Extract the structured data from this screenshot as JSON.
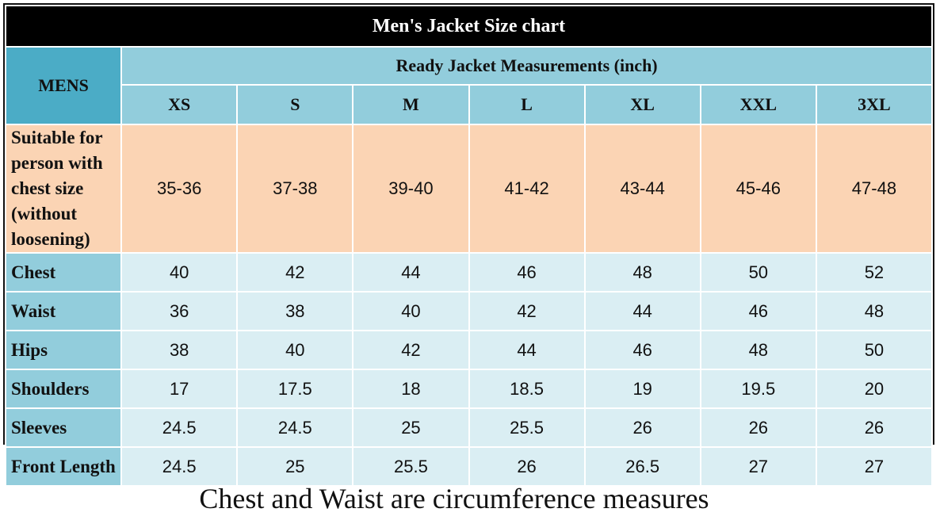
{
  "header": {
    "title": "Men's Jacket Size chart"
  },
  "table": {
    "corner": "MENS",
    "group": "Ready Jacket Measurements (inch)",
    "sizes": [
      "XS",
      "S",
      "M",
      "L",
      "XL",
      "XXL",
      "3XL"
    ],
    "rows": [
      {
        "label": "Suitable for person with chest size (without loosening)",
        "values": [
          "35-36",
          "37-38",
          "39-40",
          "41-42",
          "43-44",
          "45-46",
          "47-48"
        ]
      },
      {
        "label": "Chest",
        "values": [
          "40",
          "42",
          "44",
          "46",
          "48",
          "50",
          "52"
        ]
      },
      {
        "label": "Waist",
        "values": [
          "36",
          "38",
          "40",
          "42",
          "44",
          "46",
          "48"
        ]
      },
      {
        "label": "Hips",
        "values": [
          "38",
          "40",
          "42",
          "44",
          "46",
          "48",
          "50"
        ]
      },
      {
        "label": "Shoulders",
        "values": [
          "17",
          "17.5",
          "18",
          "18.5",
          "19",
          "19.5",
          "20"
        ]
      },
      {
        "label": "Sleeves",
        "values": [
          "24.5",
          "24.5",
          "25",
          "25.5",
          "26",
          "26",
          "26"
        ]
      },
      {
        "label": "Front Length",
        "values": [
          "24.5",
          "25",
          "25.5",
          "26",
          "26.5",
          "27",
          "27"
        ]
      }
    ]
  },
  "footer": {
    "note": "Chest and Waist are circumference measures"
  }
}
